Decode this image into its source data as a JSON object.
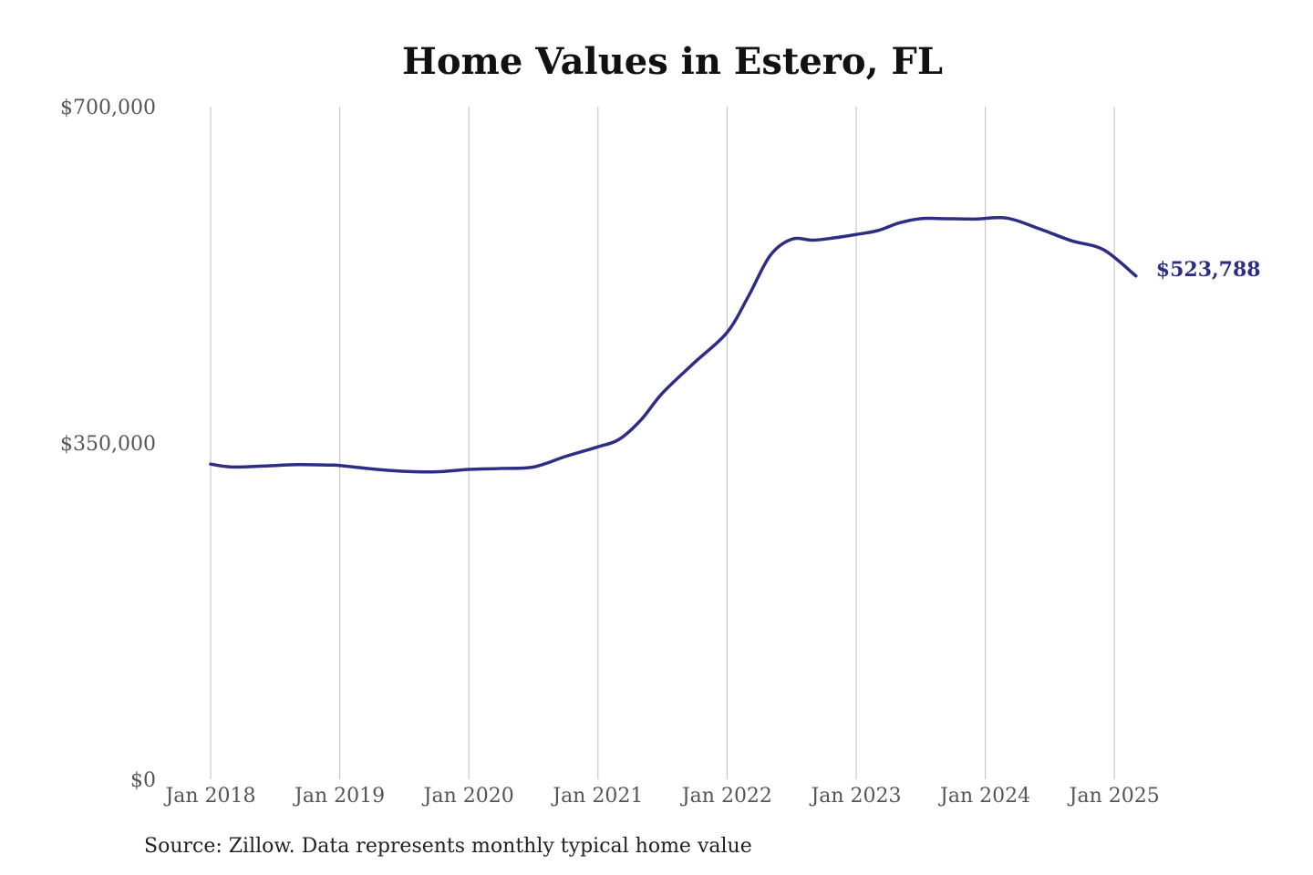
{
  "colors": {
    "line": "#2e2d86",
    "grid": "#c8c8c8",
    "tick": "#555555"
  },
  "chart_data": {
    "type": "line",
    "title": "Home Values in Estero, FL",
    "source": "Source: Zillow. Data represents monthly typical home value",
    "xlabel": "",
    "ylabel": "",
    "ylim": [
      0,
      700000
    ],
    "yticks": [
      0,
      350000,
      700000
    ],
    "ytick_labels": [
      "$0",
      "$350,000",
      "$700,000"
    ],
    "xticks": [
      "2018-01",
      "2019-01",
      "2020-01",
      "2021-01",
      "2022-01",
      "2023-01",
      "2024-01",
      "2025-01"
    ],
    "xtick_labels": [
      "Jan 2018",
      "Jan 2019",
      "Jan 2020",
      "Jan 2021",
      "Jan 2022",
      "Jan 2023",
      "Jan 2024",
      "Jan 2025"
    ],
    "grid": "vertical",
    "end_label": "$523,788",
    "series": [
      {
        "x": [
          "2018-01",
          "2018-03",
          "2018-06",
          "2018-09",
          "2018-12",
          "2019-01",
          "2019-04",
          "2019-07",
          "2019-10",
          "2020-01",
          "2020-04",
          "2020-07",
          "2020-10",
          "2021-01",
          "2021-03",
          "2021-05",
          "2021-07",
          "2021-10",
          "2022-01",
          "2022-03",
          "2022-05",
          "2022-07",
          "2022-09",
          "2022-11",
          "2023-01",
          "2023-03",
          "2023-05",
          "2023-07",
          "2023-09",
          "2023-12",
          "2024-03",
          "2024-06",
          "2024-09",
          "2024-12",
          "2025-03"
        ],
        "y": [
          328000,
          325000,
          326000,
          327500,
          327000,
          326500,
          323000,
          320500,
          320000,
          322500,
          323500,
          325000,
          336000,
          346000,
          354000,
          374000,
          402000,
          434000,
          465000,
          503000,
          545000,
          562000,
          561000,
          563500,
          567000,
          571000,
          579000,
          583500,
          583500,
          583000,
          584000,
          573000,
          560500,
          551000,
          523788
        ]
      }
    ]
  }
}
